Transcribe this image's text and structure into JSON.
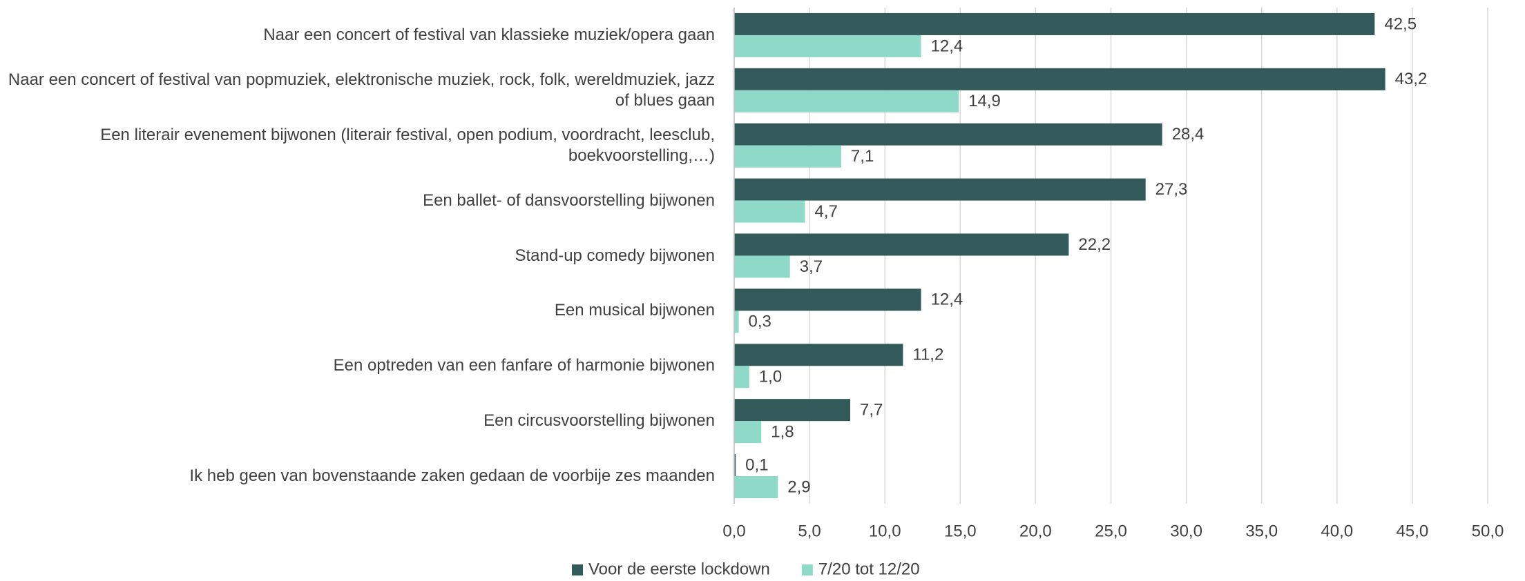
{
  "chart_data": {
    "type": "hbar",
    "categories": [
      "Naar een concert of festival van klassieke muziek/opera gaan",
      "Naar een concert of festival van popmuziek, elektronische muziek, rock, folk, wereldmuziek, jazz of blues gaan",
      "Een literair evenement bijwonen (literair festival, open podium, voordracht, leesclub, boekvoorstelling,…)",
      "Een ballet- of dansvoorstelling bijwonen",
      "Stand-up comedy bijwonen",
      "Een musical bijwonen",
      "Een optreden van een fanfare of harmonie bijwonen",
      "Een circusvoorstelling bijwonen",
      "Ik heb geen van bovenstaande zaken gedaan de voorbije zes maanden"
    ],
    "series": [
      {
        "name": "Voor de eerste lockdown",
        "color": "#335a5a",
        "values": [
          42.5,
          43.2,
          28.4,
          27.3,
          22.2,
          12.4,
          11.2,
          7.7,
          0.1
        ],
        "value_labels": [
          "42,5",
          "43,2",
          "28,4",
          "27,3",
          "22,2",
          "12,4",
          "11,2",
          "7,7",
          "0,1"
        ]
      },
      {
        "name": "7/20 tot 12/20",
        "color": "#8fd9c8",
        "values": [
          12.4,
          14.9,
          7.1,
          4.7,
          3.7,
          0.3,
          1.0,
          1.8,
          2.9
        ],
        "value_labels": [
          "12,4",
          "14,9",
          "7,1",
          "4,7",
          "3,7",
          "0,3",
          "1,0",
          "1,8",
          "2,9"
        ]
      }
    ],
    "xlim": [
      0,
      50
    ],
    "xticks": [
      {
        "value": 0,
        "label": "0,0"
      },
      {
        "value": 5,
        "label": "5,0"
      },
      {
        "value": 10,
        "label": "10,0"
      },
      {
        "value": 15,
        "label": "15,0"
      },
      {
        "value": 20,
        "label": "20,0"
      },
      {
        "value": 25,
        "label": "25,0"
      },
      {
        "value": 30,
        "label": "30,0"
      },
      {
        "value": 35,
        "label": "35,0"
      },
      {
        "value": 40,
        "label": "40,0"
      },
      {
        "value": 45,
        "label": "45,0"
      },
      {
        "value": 50,
        "label": "50,0"
      }
    ],
    "grid": true,
    "legend": "bottom"
  }
}
